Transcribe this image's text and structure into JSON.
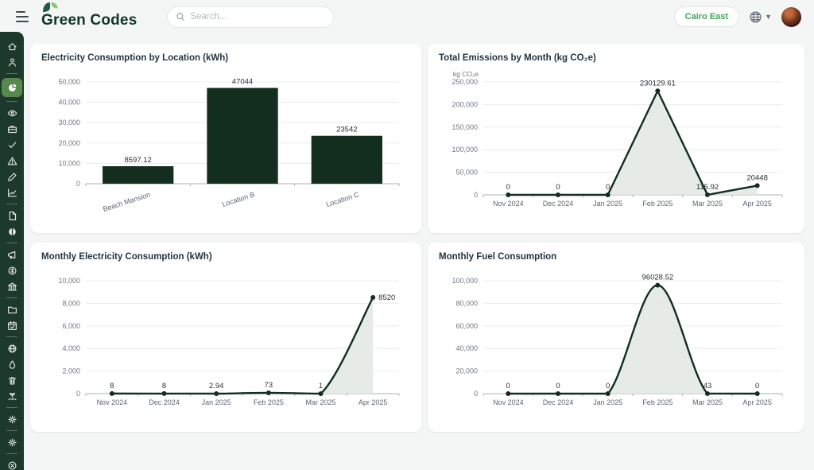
{
  "header": {
    "brand": "Green Codes",
    "search_placeholder": "Search...",
    "location_button": "Cairo East",
    "icons": [
      "menu-icon",
      "search-icon",
      "globe-icon",
      "caret-down-icon",
      "avatar"
    ]
  },
  "sidebar": {
    "items": [
      {
        "icon": "home"
      },
      {
        "icon": "user"
      },
      {
        "divider": true
      },
      {
        "icon": "pie-chart",
        "active": true
      },
      {
        "divider": true
      },
      {
        "icon": "eye"
      },
      {
        "icon": "briefcase"
      },
      {
        "icon": "check"
      },
      {
        "icon": "warning"
      },
      {
        "icon": "pen"
      },
      {
        "icon": "chart-line"
      },
      {
        "divider": true
      },
      {
        "icon": "file"
      },
      {
        "icon": "pie-half"
      },
      {
        "divider": true
      },
      {
        "icon": "megaphone"
      },
      {
        "icon": "transactions"
      },
      {
        "icon": "bank"
      },
      {
        "divider": true
      },
      {
        "icon": "folder"
      },
      {
        "icon": "calendar-check"
      },
      {
        "divider": true
      },
      {
        "icon": "globe"
      },
      {
        "icon": "droplet"
      },
      {
        "icon": "trash"
      },
      {
        "icon": "plant-hand"
      },
      {
        "divider": true
      },
      {
        "icon": "gear"
      },
      {
        "divider": true
      },
      {
        "icon": "gear-2"
      },
      {
        "divider": true
      },
      {
        "icon": "close-circle"
      },
      {
        "icon": "globe-grid"
      }
    ]
  },
  "colors": {
    "sidebar": "#1d392c",
    "sidebar_active": "#57894e",
    "chart_dark_green": "#132d1f",
    "area_fill": "#e3e7e4",
    "accent_green": "#41a45b"
  },
  "chart_data": [
    {
      "type": "bar",
      "title": "Electricity Consumption by Location (kWh)",
      "categories": [
        "Beach Mansion",
        "Location B",
        "Location C"
      ],
      "values": [
        8597.12,
        47044,
        23542
      ],
      "labels": [
        "8597.12",
        "47044",
        "23542"
      ],
      "ylim": [
        0,
        50000
      ],
      "ytick_step": 10000,
      "grid": true,
      "legend": "none"
    },
    {
      "type": "line",
      "smooth": false,
      "title": "Total Emissions by Month (kg CO₂e)",
      "unit_label": "kg CO₂e",
      "categories": [
        "Nov 2024",
        "Dec 2024",
        "Jan 2025",
        "Feb 2025",
        "Mar 2025",
        "Apr 2025"
      ],
      "values": [
        0,
        0,
        0,
        230129.61,
        115.92,
        20448
      ],
      "labels": [
        "0",
        "0",
        "0",
        "230129.61",
        "115.92",
        "20448"
      ],
      "ylim": [
        0,
        250000
      ],
      "ytick_step": 50000,
      "grid": true,
      "legend": "none"
    },
    {
      "type": "line",
      "smooth": true,
      "title": "Monthly Electricity Consumption (kWh)",
      "categories": [
        "Nov 2024",
        "Dec 2024",
        "Jan 2025",
        "Feb 2025",
        "Mar 2025",
        "Apr 2025"
      ],
      "values": [
        8,
        8,
        2.94,
        73,
        1,
        8520
      ],
      "labels": [
        "8",
        "8",
        "2.94",
        "73",
        "1",
        "8520"
      ],
      "ylim": [
        0,
        10000
      ],
      "ytick_step": 2000,
      "grid": true,
      "legend": "none"
    },
    {
      "type": "line",
      "smooth": true,
      "title": "Monthly Fuel Consumption",
      "categories": [
        "Nov 2024",
        "Dec 2024",
        "Jan 2025",
        "Feb 2025",
        "Mar 2025",
        "Apr 2025"
      ],
      "values": [
        0,
        0,
        0,
        96028.52,
        43,
        0
      ],
      "labels": [
        "0",
        "0",
        "0",
        "96028.52",
        "43",
        "0"
      ],
      "ylim": [
        0,
        100000
      ],
      "ytick_step": 20000,
      "grid": true,
      "legend": "none"
    }
  ]
}
